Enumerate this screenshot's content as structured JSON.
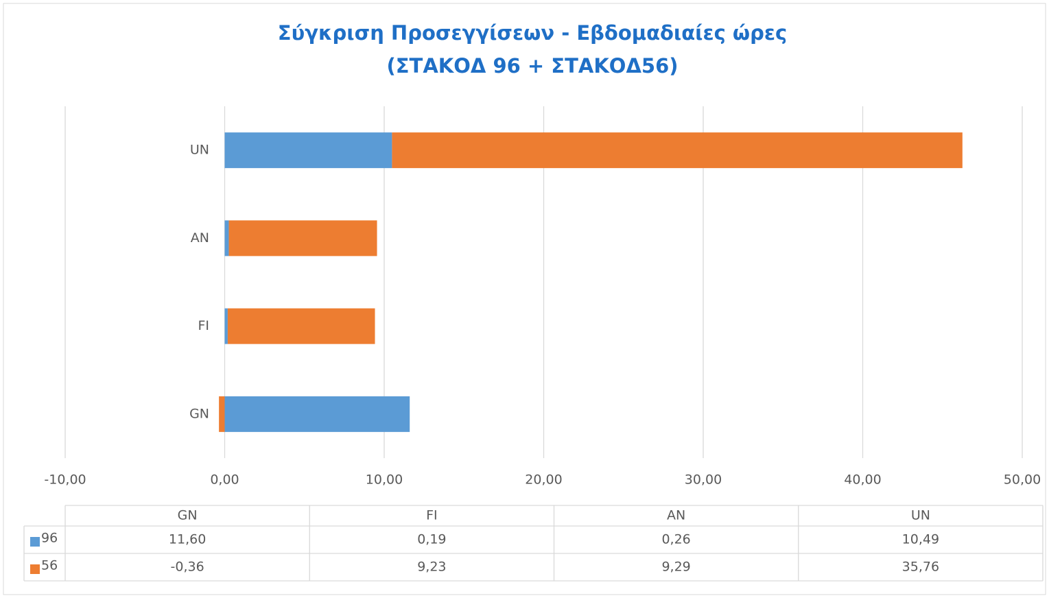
{
  "chart_data": {
    "type": "bar",
    "orientation": "horizontal",
    "stacked": true,
    "title": [
      "Σύγκριση Προσεγγίσεων - Εβδομαδιαίες ώρες",
      "(ΣΤΑΚΟΔ 96 + ΣΤΑΚΟΔ56)"
    ],
    "categories": [
      "GN",
      "FI",
      "AN",
      "UN"
    ],
    "series": [
      {
        "name": "96",
        "color": "#5b9bd5",
        "values": [
          11.6,
          0.19,
          0.26,
          10.49
        ],
        "value_labels": [
          "11,60",
          "0,19",
          "0,26",
          "10,49"
        ]
      },
      {
        "name": "56",
        "color": "#ed7d31",
        "values": [
          -0.36,
          9.23,
          9.29,
          35.76
        ],
        "value_labels": [
          "-0,36",
          "9,23",
          "9,29",
          "35,76"
        ]
      }
    ],
    "xlim": [
      -10,
      50
    ],
    "xticks": [
      {
        "value": -10,
        "label": "-10,00"
      },
      {
        "value": 0,
        "label": "0,00"
      },
      {
        "value": 10,
        "label": "10,00"
      },
      {
        "value": 20,
        "label": "20,00"
      },
      {
        "value": 30,
        "label": "30,00"
      },
      {
        "value": 40,
        "label": "40,00"
      },
      {
        "value": 50,
        "label": "50,00"
      }
    ],
    "grid": true,
    "data_table": true
  }
}
